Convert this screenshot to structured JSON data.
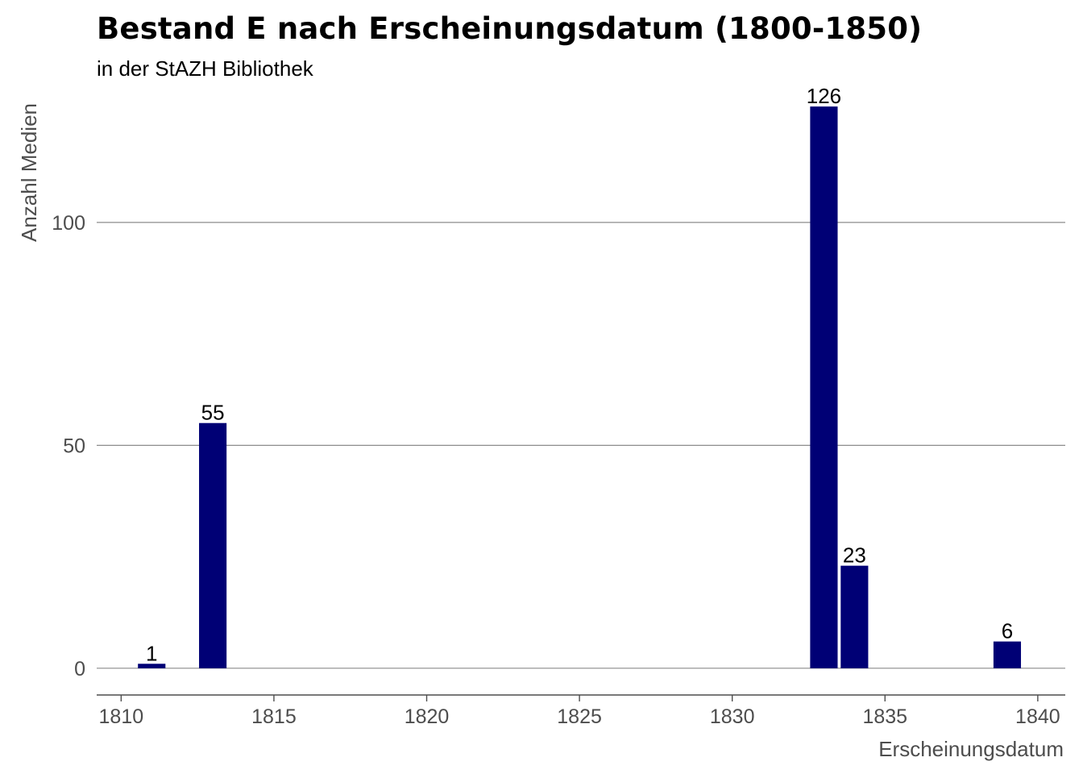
{
  "chart_data": {
    "type": "bar",
    "title": "Bestand E nach Erscheinungsdatum (1800-1850)",
    "subtitle": "in der StAZH Bibliothek",
    "xlabel": "Erscheinungsdatum",
    "ylabel": "Anzahl Medien",
    "x": [
      1811,
      1813,
      1833,
      1834,
      1839
    ],
    "values": [
      1,
      55,
      126,
      23,
      6
    ],
    "bar_labels": [
      "1",
      "55",
      "126",
      "23",
      "6"
    ],
    "xlim": [
      1809.2,
      1840.9
    ],
    "ylim": [
      -6,
      130
    ],
    "xticks": [
      1810,
      1815,
      1820,
      1825,
      1830,
      1835,
      1840
    ],
    "xtick_labels": [
      "1810",
      "1815",
      "1820",
      "1825",
      "1830",
      "1835",
      "1840"
    ],
    "yticks": [
      0,
      50,
      100
    ],
    "ytick_labels": [
      "0",
      "50",
      "100"
    ],
    "grid": "horizontal major",
    "legend": "none",
    "bar_color": "#000075",
    "grid_color": "#8c8c8c",
    "axis_color": "#4d4d4d"
  }
}
